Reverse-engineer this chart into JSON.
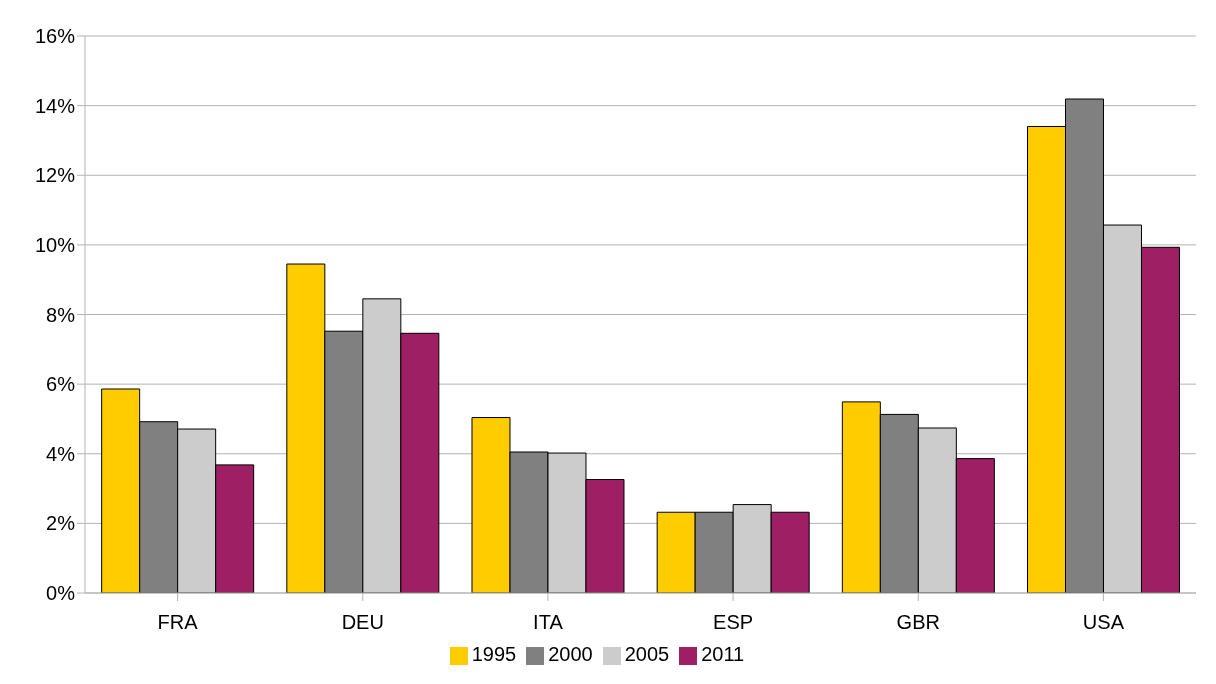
{
  "chart_data": {
    "type": "bar",
    "categories": [
      "FRA",
      "DEU",
      "ITA",
      "ESP",
      "GBR",
      "USA"
    ],
    "series": [
      {
        "name": "1995",
        "color": "#ffcc00",
        "values": [
          5.86,
          9.45,
          5.04,
          2.32,
          5.49,
          13.4
        ]
      },
      {
        "name": "2000",
        "color": "#808080",
        "values": [
          4.92,
          7.52,
          4.05,
          2.32,
          5.13,
          14.19
        ]
      },
      {
        "name": "2005",
        "color": "#cccccc",
        "values": [
          4.71,
          8.45,
          4.02,
          2.54,
          4.74,
          10.57
        ]
      },
      {
        "name": "2011",
        "color": "#9e1f63",
        "values": [
          3.68,
          7.46,
          3.26,
          2.32,
          3.86,
          9.93
        ]
      }
    ],
    "ylim": [
      0,
      16
    ],
    "yticks": [
      {
        "value": 0,
        "label": "0%"
      },
      {
        "value": 2,
        "label": "2%"
      },
      {
        "value": 4,
        "label": "4%"
      },
      {
        "value": 6,
        "label": "6%"
      },
      {
        "value": 8,
        "label": "8%"
      },
      {
        "value": 10,
        "label": "10%"
      },
      {
        "value": 12,
        "label": "12%"
      },
      {
        "value": 14,
        "label": "14%"
      },
      {
        "value": 16,
        "label": "16%"
      }
    ],
    "grid": "y",
    "legend": "bottom"
  }
}
